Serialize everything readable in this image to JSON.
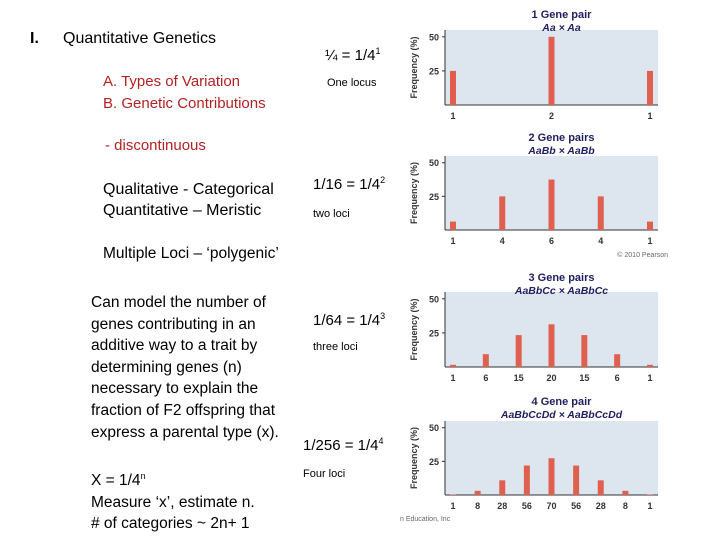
{
  "slide": {
    "roman": "I.",
    "title": "Quantitative Genetics",
    "outline_a": "A.  Types of Variation",
    "outline_b": "B. Genetic Contributions",
    "discontinuous": "- discontinuous",
    "qualitative": "Qualitative - Categorical",
    "quantitative": "Quantitative – Meristic",
    "multiple_loci": "Multiple Loci – ‘polygenic’",
    "model_lines": [
      "Can model the number of",
      "genes contributing in an",
      "additive way to a trait by",
      "determining genes (n)",
      "necessary to explain the",
      "fraction of F2 offspring that",
      "express a parental type  (x)."
    ],
    "formula_base": "X = 1/4",
    "formula_exp": "n",
    "measure": "Measure ‘x’, estimate n.",
    "categories": "# of categories ~ 2n+ 1"
  },
  "equations": [
    {
      "text": "¼ = 1/4",
      "exp": "1",
      "loci": "One locus"
    },
    {
      "text": "1/16 = 1/4",
      "exp": "2",
      "loci": "two loci"
    },
    {
      "text": "1/64 = 1/4",
      "exp": "3",
      "loci": "three loci"
    },
    {
      "text": "1/256 = 1/4",
      "exp": "4",
      "loci": "Four loci"
    }
  ],
  "credits": {
    "copyright": "© 2010 Pearson",
    "education": "n Education, Inc"
  },
  "colors": {
    "bar": "#e0604f",
    "plot_bg": "#dde5ef",
    "title_text": "#1f1f5f",
    "red_text": "#b22222"
  },
  "chart_data": [
    {
      "type": "bar",
      "title": "1 Gene pair",
      "subtitle": "Aa  ×  Aa",
      "ylabel": "Frequency (%)",
      "yticks": [
        25,
        50
      ],
      "ylim": [
        0,
        55
      ],
      "categories": [
        "1",
        "2",
        "1"
      ],
      "values": [
        25,
        50,
        25
      ]
    },
    {
      "type": "bar",
      "title": "2 Gene pairs",
      "subtitle": "AaBb  ×  AaBb",
      "ylabel": "Frequency (%)",
      "yticks": [
        25,
        50
      ],
      "ylim": [
        0,
        55
      ],
      "categories": [
        "1",
        "4",
        "6",
        "4",
        "1"
      ],
      "values": [
        6.25,
        25,
        37.5,
        25,
        6.25
      ]
    },
    {
      "type": "bar",
      "title": "3 Gene pairs",
      "subtitle": "AaBbCc  ×  AaBbCc",
      "ylabel": "Frequency (%)",
      "yticks": [
        25,
        50
      ],
      "ylim": [
        0,
        55
      ],
      "categories": [
        "1",
        "6",
        "15",
        "20",
        "15",
        "6",
        "1"
      ],
      "values": [
        1.6,
        9.4,
        23.4,
        31.3,
        23.4,
        9.4,
        1.6
      ]
    },
    {
      "type": "bar",
      "title": "4 Gene pair",
      "subtitle": "AaBbCcDd  ×  AaBbCcDd",
      "ylabel": "Frequency (%)",
      "yticks": [
        25,
        50
      ],
      "ylim": [
        0,
        55
      ],
      "categories": [
        "1",
        "8",
        "28",
        "56",
        "70",
        "56",
        "28",
        "8",
        "1"
      ],
      "values": [
        0.4,
        3.1,
        10.9,
        21.9,
        27.3,
        21.9,
        10.9,
        3.1,
        0.4
      ]
    }
  ]
}
